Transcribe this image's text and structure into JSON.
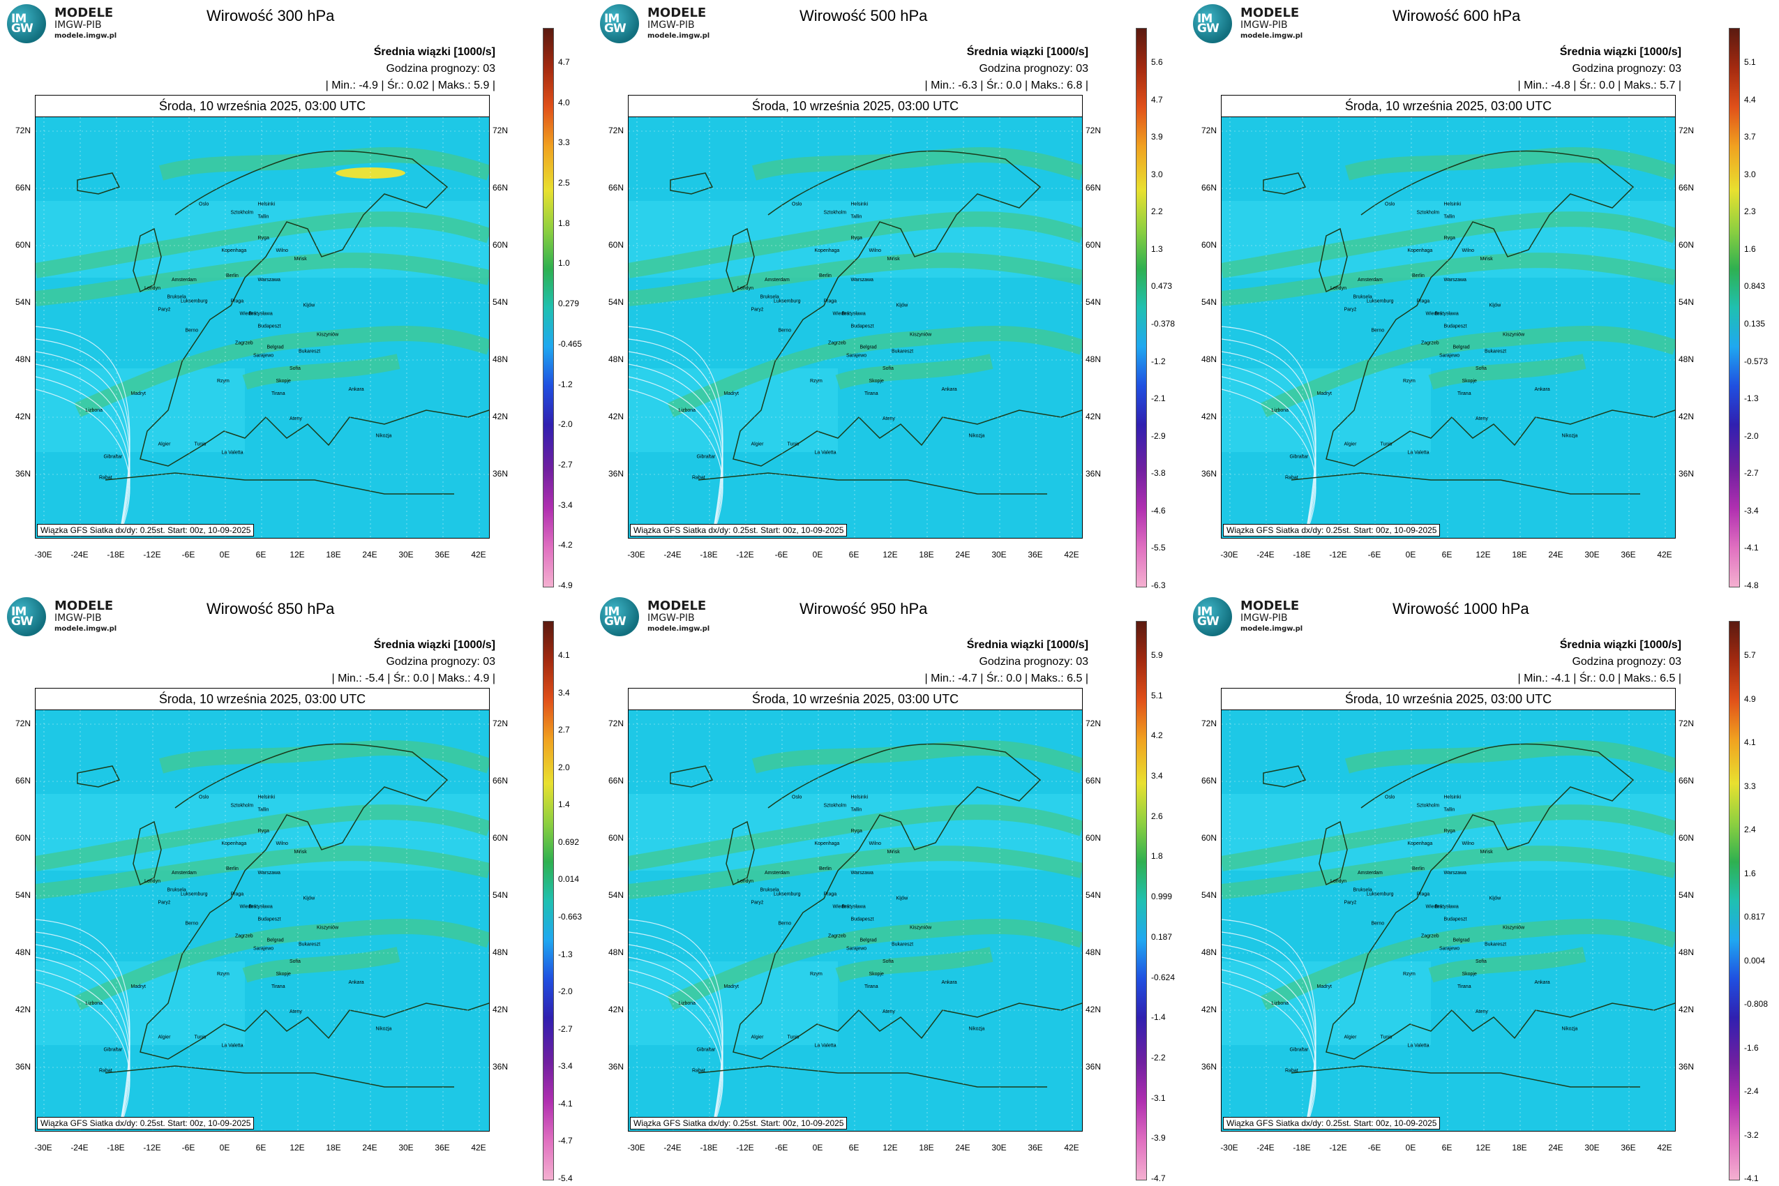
{
  "logo": {
    "name": "MODELE",
    "org": "IMGW-PIB",
    "url": "modele.imgw.pl",
    "mark_top": "IM",
    "mark_bottom": "GW"
  },
  "common": {
    "units": "Średnia wiązki [1000/s]",
    "forecast_hour": "Godzina prognozy: 03",
    "date_header": "Środa, 10 września 2025, 03:00 UTC",
    "source": "Wiązka GFS Siatka dx/dy: 0.25st. Start: 00z, 10-09-2025",
    "lat_labels": [
      "72N",
      "66N",
      "60N",
      "54N",
      "48N",
      "42N",
      "36N"
    ],
    "lon_labels": [
      "-30E",
      "-24E",
      "-18E",
      "-12E",
      "-6E",
      "0E",
      "6E",
      "12E",
      "18E",
      "24E",
      "30E",
      "36E",
      "42E"
    ]
  },
  "panels": [
    {
      "title": "Wirowość 300 hPa",
      "stats": "| Min.:   -4.9 | Śr.:   0.02 | Maks.:   5.9 |",
      "colorbar": [
        "4.7",
        "4.0",
        "3.3",
        "2.5",
        "1.8",
        "1.0",
        "0.279",
        "-0.465",
        "-1.2",
        "-2.0",
        "-2.7",
        "-3.4",
        "-4.2",
        "-4.9"
      ]
    },
    {
      "title": "Wirowość 500 hPa",
      "stats": "| Min.:   -6.3 | Śr.:    0.0 | Maks.:   6.8 |",
      "colorbar": [
        "5.6",
        "4.7",
        "3.9",
        "3.0",
        "2.2",
        "1.3",
        "0.473",
        "-0.378",
        "-1.2",
        "-2.1",
        "-2.9",
        "-3.8",
        "-4.6",
        "-5.5",
        "-6.3"
      ]
    },
    {
      "title": "Wirowość 600 hPa",
      "stats": "| Min.:   -4.8 | Śr.:    0.0 | Maks.:   5.7 |",
      "colorbar": [
        "5.1",
        "4.4",
        "3.7",
        "3.0",
        "2.3",
        "1.6",
        "0.843",
        "0.135",
        "-0.573",
        "-1.3",
        "-2.0",
        "-2.7",
        "-3.4",
        "-4.1",
        "-4.8"
      ]
    },
    {
      "title": "Wirowość 850 hPa",
      "stats": "| Min.:   -5.4 | Śr.:    0.0 | Maks.:   4.9 |",
      "colorbar": [
        "4.1",
        "3.4",
        "2.7",
        "2.0",
        "1.4",
        "0.692",
        "0.014",
        "-0.663",
        "-1.3",
        "-2.0",
        "-2.7",
        "-3.4",
        "-4.1",
        "-4.7",
        "-5.4"
      ]
    },
    {
      "title": "Wirowość 950 hPa",
      "stats": "| Min.:   -4.7 | Śr.:    0.0 | Maks.:   6.5 |",
      "colorbar": [
        "5.9",
        "5.1",
        "4.2",
        "3.4",
        "2.6",
        "1.8",
        "0.999",
        "0.187",
        "-0.624",
        "-1.4",
        "-2.2",
        "-3.1",
        "-3.9",
        "-4.7"
      ]
    },
    {
      "title": "Wirowość 1000 hPa",
      "stats": "| Min.:   -4.1 | Śr.:    0.0 | Maks.:   6.5 |",
      "colorbar": [
        "5.7",
        "4.9",
        "4.1",
        "3.3",
        "2.4",
        "1.6",
        "0.817",
        "0.004",
        "-0.808",
        "-1.6",
        "-2.4",
        "-3.2",
        "-4.1"
      ]
    }
  ],
  "cities": [
    "Oslo",
    "Sztokholm",
    "Helsinki",
    "Tallin",
    "Ryga",
    "Kopenhaga",
    "Wilno",
    "Mińsk",
    "Berlin",
    "Warszawa",
    "Amsterdam",
    "Londyn",
    "Bruksela",
    "Luksemburg",
    "Paryż",
    "Praga",
    "Wiedeń",
    "Bratysława",
    "Kijów",
    "Kiszyniów",
    "Budapeszt",
    "Berno",
    "Zagrzeb",
    "Belgrad",
    "Bukareszt",
    "Sarajewo",
    "Sofia",
    "Skopje",
    "Rzym",
    "Tirana",
    "Ateny",
    "Ankara",
    "Madryt",
    "Lizbona",
    "Algier",
    "Tunis",
    "La Valetta",
    "Rabat",
    "Gibraltar",
    "Nikozja"
  ],
  "colors": {
    "ocean": "#1ec8e6",
    "ocean_light": "#33d7f0",
    "green": "#43c98a",
    "yellow": "#e8e23a"
  }
}
